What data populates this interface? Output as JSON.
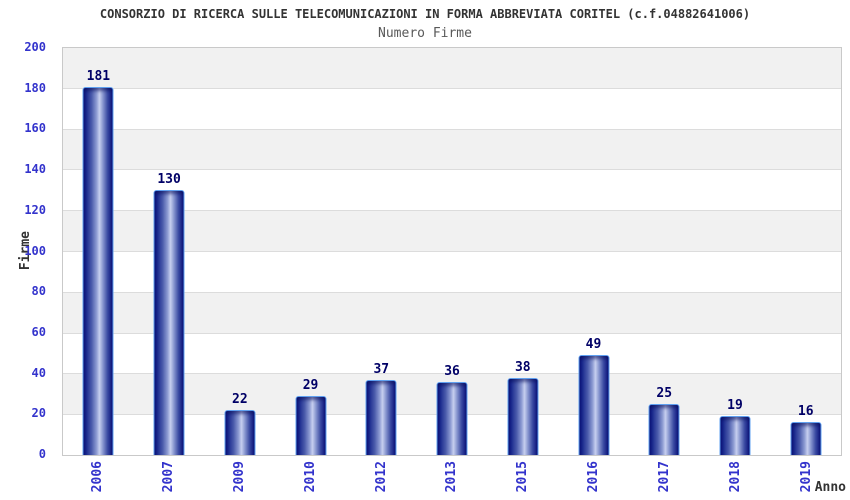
{
  "chart_data": {
    "type": "bar",
    "title": "CONSORZIO DI RICERCA SULLE TELECOMUNICAZIONI IN FORMA ABBREVIATA CORITEL (c.f.04882641006)",
    "subtitle": "Numero Firme",
    "xlabel": "Anno",
    "ylabel": "Firme",
    "categories": [
      "2006",
      "2007",
      "2009",
      "2010",
      "2012",
      "2013",
      "2015",
      "2016",
      "2017",
      "2018",
      "2019"
    ],
    "values": [
      181,
      130,
      22,
      29,
      37,
      36,
      38,
      49,
      25,
      19,
      16
    ],
    "ylim": [
      0,
      200
    ],
    "ytick_step": 20,
    "grid": "horizontal gridlines every 20 with alternating gray/white bands, gray band at top",
    "legend": "none",
    "bar_style": "vertical cylinder-gradient blue bars with light-blue outline, value labels above bars",
    "x_tick_rotation": "90deg reading bottom-to-top"
  },
  "theme": {
    "title": "#333333",
    "subtitle": "#595959",
    "tick_label": "#3333cc",
    "value_label": "#000066",
    "axis_label": "#333333",
    "band_gray": "#f1f1f1",
    "gridline": "#dcdcdc",
    "plot_border": "#c9c9c9",
    "bar_border": "#5fa0f0",
    "bar_dark": "#0c137d",
    "bar_light": "#c7cfef"
  }
}
